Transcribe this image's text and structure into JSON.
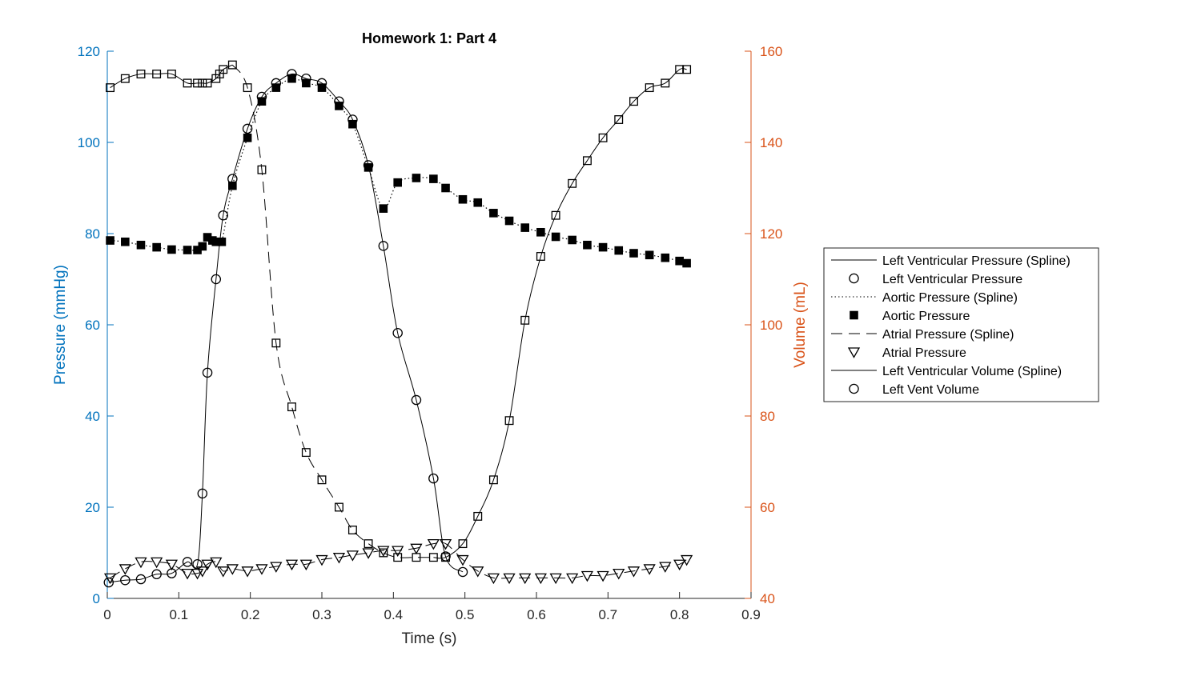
{
  "chart_data": {
    "type": "line",
    "title": "Homework 1: Part 4",
    "xlabel": "Time (s)",
    "ylabel_left": "Pressure (mmHg)",
    "ylabel_right": "Volume (mL)",
    "xlim": [
      0,
      0.9
    ],
    "ylim_left": [
      0,
      120
    ],
    "ylim_right": [
      40,
      160
    ],
    "x_ticks": [
      "0",
      "0.1",
      "0.2",
      "0.3",
      "0.4",
      "0.5",
      "0.6",
      "0.7",
      "0.8",
      "0.9"
    ],
    "y_ticks_left": [
      "0",
      "20",
      "40",
      "60",
      "80",
      "100",
      "120"
    ],
    "y_ticks_right": [
      "40",
      "60",
      "80",
      "100",
      "120",
      "140",
      "160"
    ],
    "grid": false,
    "legend_position": "right",
    "colors": {
      "left_axis": "#0072BD",
      "right_axis": "#D95319",
      "series": "#000000"
    },
    "legend": [
      {
        "label": "Left Ventricular Pressure (Spline)",
        "style": "solid"
      },
      {
        "label": "Left Ventricular Pressure",
        "style": "marker-circle"
      },
      {
        "label": "Aortic Pressure (Spline)",
        "style": "dotted"
      },
      {
        "label": "Aortic Pressure",
        "style": "marker-filled-square"
      },
      {
        "label": "Atrial Pressure (Spline)",
        "style": "dashed"
      },
      {
        "label": "Atrial Pressure",
        "style": "marker-triangle-down"
      },
      {
        "label": "Left Ventricular Volume (Spline)",
        "style": "solid"
      },
      {
        "label": "Left Vent Volume",
        "style": "marker-circle"
      }
    ],
    "series": [
      {
        "name": "Left Ventricular Pressure",
        "axis": "left",
        "marker": "circle",
        "line": "solid",
        "x": [
          0.002,
          0.025,
          0.047,
          0.069,
          0.09,
          0.112,
          0.126,
          0.133,
          0.14,
          0.152,
          0.162,
          0.175,
          0.196,
          0.216,
          0.236,
          0.258,
          0.278,
          0.3,
          0.324,
          0.343,
          0.365,
          0.386,
          0.406,
          0.432,
          0.456,
          0.473,
          0.497
        ],
        "y": [
          3.5,
          4,
          4.2,
          5.3,
          5.5,
          8,
          7.5,
          23,
          49.5,
          70,
          84,
          92,
          103,
          110,
          113,
          115,
          114,
          113,
          109,
          105,
          95,
          77.3,
          58.2,
          43.5,
          26.3,
          9.2,
          5.8
        ]
      },
      {
        "name": "Aortic Pressure",
        "axis": "left",
        "marker": "filled-square",
        "line": "dotted",
        "x": [
          0.004,
          0.025,
          0.047,
          0.069,
          0.09,
          0.112,
          0.126,
          0.133,
          0.14,
          0.147,
          0.152,
          0.16,
          0.175,
          0.196,
          0.216,
          0.236,
          0.258,
          0.278,
          0.3,
          0.324,
          0.343,
          0.365,
          0.386,
          0.406,
          0.432,
          0.456,
          0.473,
          0.497,
          0.518,
          0.54,
          0.562,
          0.584,
          0.606,
          0.627,
          0.65,
          0.671,
          0.693,
          0.715,
          0.736,
          0.758,
          0.78,
          0.8,
          0.81
        ],
        "y": [
          78.5,
          78.2,
          77.5,
          77,
          76.5,
          76.4,
          76.4,
          77.2,
          79.2,
          78.5,
          78.2,
          78.2,
          90.5,
          101,
          109,
          112,
          114,
          113,
          112,
          108,
          104,
          94.5,
          85.5,
          91.2,
          92.2,
          92,
          90,
          87.5,
          86.8,
          84.5,
          82.8,
          81.3,
          80.3,
          79.3,
          78.6,
          77.5,
          77,
          76.3,
          75.7,
          75.3,
          74.7,
          74,
          73.5
        ]
      },
      {
        "name": "Atrial Pressure",
        "axis": "left",
        "marker": "triangle-down",
        "line": "dashed",
        "x": [
          0.004,
          0.025,
          0.047,
          0.069,
          0.09,
          0.112,
          0.126,
          0.133,
          0.14,
          0.152,
          0.162,
          0.175,
          0.196,
          0.216,
          0.236,
          0.258,
          0.278,
          0.3,
          0.324,
          0.343,
          0.365,
          0.386,
          0.406,
          0.432,
          0.456,
          0.473,
          0.497,
          0.518,
          0.54,
          0.562,
          0.584,
          0.606,
          0.627,
          0.65,
          0.671,
          0.693,
          0.715,
          0.736,
          0.758,
          0.78,
          0.8,
          0.81
        ],
        "y": [
          4.5,
          6.5,
          8,
          8,
          7.5,
          5.5,
          5.5,
          6,
          7.5,
          8,
          6,
          6.5,
          6,
          6.5,
          7,
          7.5,
          7.5,
          8.5,
          9,
          9.5,
          10,
          10.5,
          10.5,
          11,
          12,
          12,
          8.5,
          6,
          4.5,
          4.5,
          4.5,
          4.5,
          4.5,
          4.5,
          5,
          5,
          5.5,
          6,
          6.5,
          7,
          7.5,
          8.5
        ]
      },
      {
        "name": "Left Vent Volume",
        "axis": "right",
        "marker": "square",
        "line": "solid-dashed",
        "x": [
          0.004,
          0.025,
          0.047,
          0.069,
          0.09,
          0.112,
          0.126,
          0.133,
          0.14,
          0.152,
          0.157,
          0.162,
          0.175,
          0.196,
          0.216,
          0.236,
          0.258,
          0.278,
          0.3,
          0.324,
          0.343,
          0.365,
          0.386,
          0.406,
          0.432,
          0.456,
          0.473,
          0.497,
          0.518,
          0.54,
          0.562,
          0.584,
          0.606,
          0.627,
          0.65,
          0.671,
          0.693,
          0.715,
          0.736,
          0.758,
          0.78,
          0.8,
          0.81
        ],
        "y": [
          152,
          154,
          155,
          155,
          155,
          153,
          153,
          153,
          153,
          154,
          155,
          156,
          157,
          152,
          134,
          96,
          82,
          72,
          66,
          60,
          55,
          52,
          50,
          49,
          49,
          49,
          49,
          52,
          58,
          66,
          79,
          101,
          115,
          124,
          131,
          136,
          141,
          145,
          149,
          152,
          153,
          156,
          156
        ]
      }
    ]
  }
}
